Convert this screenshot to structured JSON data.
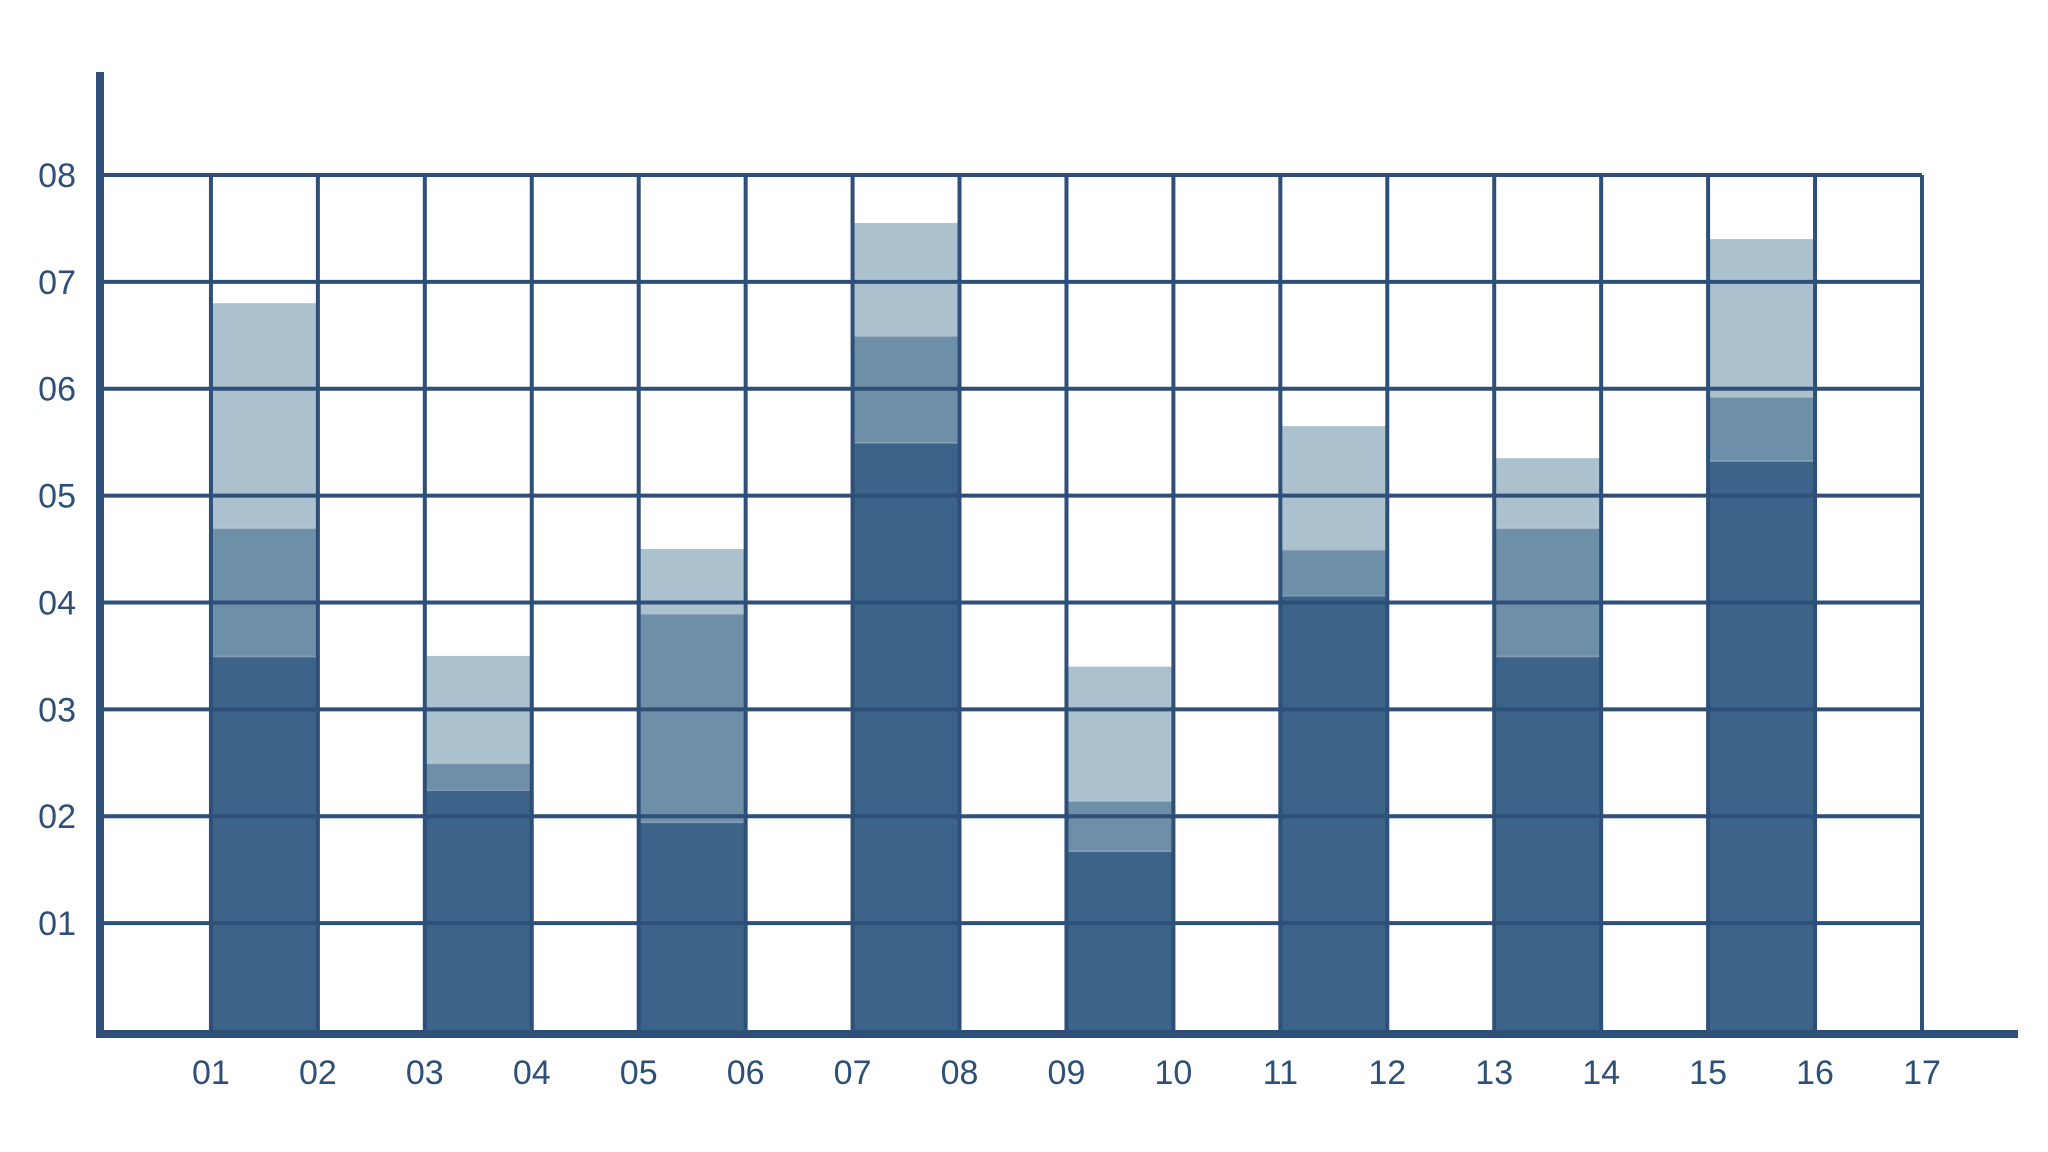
{
  "chart_data": {
    "type": "bar",
    "stacked": true,
    "x_ticks": [
      "01",
      "02",
      "03",
      "04",
      "05",
      "06",
      "07",
      "08",
      "09",
      "10",
      "11",
      "12",
      "13",
      "14",
      "15",
      "16",
      "17"
    ],
    "y_ticks": [
      "01",
      "02",
      "03",
      "04",
      "05",
      "06",
      "07",
      "08"
    ],
    "xlim": [
      0,
      17
    ],
    "ylim": [
      0,
      8
    ],
    "grid": true,
    "bars": [
      {
        "x_start": 1,
        "x_end": 2,
        "segments": [
          3.5,
          1.2,
          2.1
        ]
      },
      {
        "x_start": 3,
        "x_end": 4,
        "segments": [
          2.25,
          0.25,
          1.0
        ]
      },
      {
        "x_start": 5,
        "x_end": 6,
        "segments": [
          1.95,
          1.95,
          0.6
        ]
      },
      {
        "x_start": 7,
        "x_end": 8,
        "segments": [
          5.5,
          1.0,
          1.05
        ]
      },
      {
        "x_start": 9,
        "x_end": 10,
        "segments": [
          1.68,
          0.47,
          1.25
        ]
      },
      {
        "x_start": 11,
        "x_end": 12,
        "segments": [
          4.07,
          0.43,
          1.15
        ]
      },
      {
        "x_start": 13,
        "x_end": 14,
        "segments": [
          3.5,
          1.2,
          0.65
        ]
      },
      {
        "x_start": 15,
        "x_end": 16,
        "segments": [
          5.33,
          0.6,
          1.47
        ]
      }
    ],
    "colors": {
      "segment_1": "#3c6489",
      "segment_2": "#6e8fa8",
      "segment_3": "#abc1ce",
      "grid": "#2d4f78",
      "axis": "#2d4f78"
    }
  }
}
